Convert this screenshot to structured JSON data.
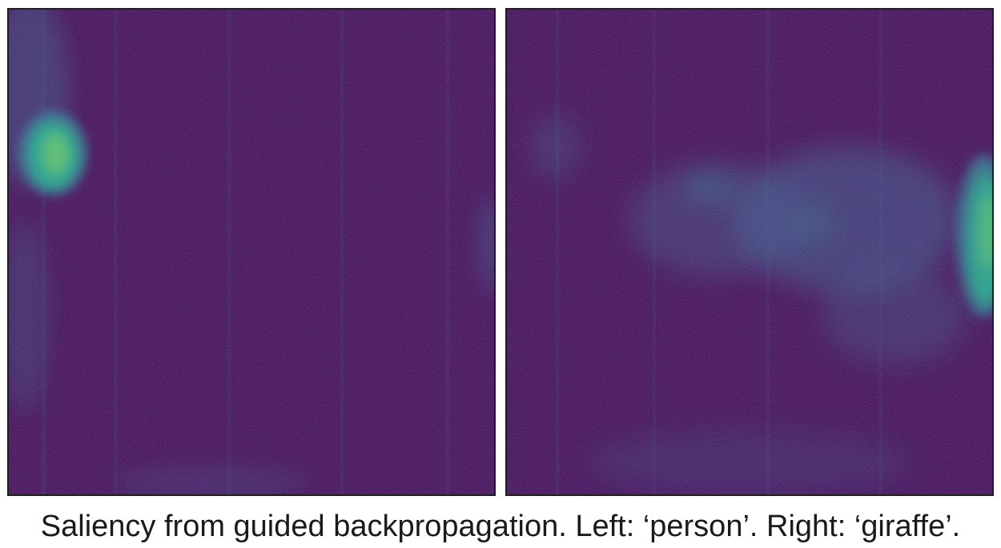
{
  "figure": {
    "caption": "Saliency from guided backpropagation. Left: ‘person’. Right: ‘giraffe’.",
    "colormap": "viridis",
    "colors": {
      "background": "#440154",
      "low": "#472d7b",
      "mid": "#2a788e",
      "high": "#22a884",
      "peak": "#7ad151",
      "frame": "#1e1e1e"
    },
    "panels": [
      {
        "name": "left",
        "label": "person"
      },
      {
        "name": "right",
        "label": "giraffe"
      }
    ]
  }
}
